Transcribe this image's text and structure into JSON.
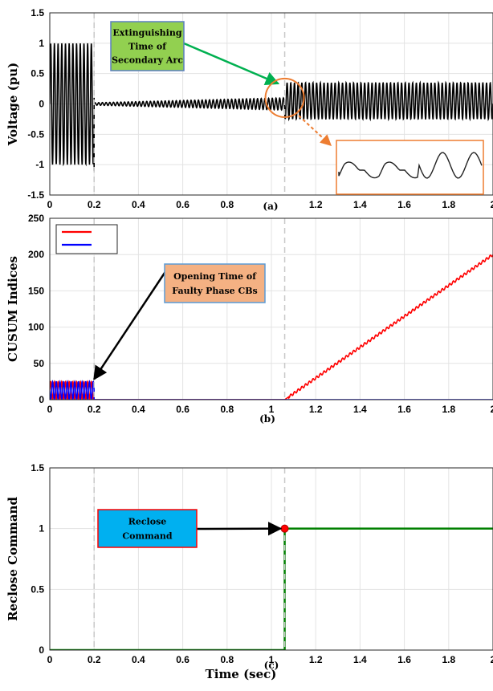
{
  "chart_data": [
    {
      "id": "a",
      "type": "line",
      "panel_label": "(a)",
      "ylabel": "Voltage (pu)",
      "xlim": [
        0,
        2
      ],
      "ylim": [
        -1.5,
        1.5
      ],
      "xticks": [
        0,
        0.2,
        0.4,
        0.6,
        0.8,
        1,
        1.2,
        1.4,
        1.6,
        1.8,
        2
      ],
      "xtick_labels": [
        "0",
        "0.2",
        "0.4",
        "0.6",
        "0.8",
        "",
        "1.2",
        "1.4",
        "1.6",
        "1.8",
        "2"
      ],
      "yticks": [
        -1.5,
        -1,
        -0.5,
        0,
        0.5,
        1,
        1.5
      ],
      "ytick_labels": [
        "-1.5",
        "-1",
        "-0.5",
        "0",
        "0.5",
        "1",
        "1.5"
      ],
      "grid": true,
      "series": [
        {
          "color": "#000000",
          "description": "faulted-phase voltage oscillation",
          "segments": [
            {
              "x_start": 0.0,
              "x_end": 0.2,
              "amplitude": 1.0,
              "offset": 0
            },
            {
              "x_start": 0.2,
              "x_end": 1.06,
              "amplitude_start": 0.02,
              "amplitude_end": 0.1,
              "offset": 0
            },
            {
              "x_start": 1.06,
              "x_end": 2.0,
              "amplitude": 0.3,
              "offset": 0.05
            }
          ]
        }
      ],
      "annotations": [
        {
          "text": [
            "Extinguishing",
            "Time of",
            "Secondary Arc"
          ],
          "fill": "#92d050",
          "border": "#5b7fbf",
          "arrow_color": "#00b050",
          "points_to": [
            1.06,
            0.15
          ]
        },
        {
          "type": "circle",
          "center": [
            1.06,
            0.1
          ],
          "color": "#ed7d31"
        },
        {
          "type": "inset",
          "color": "#ed7d31",
          "from": [
            1.1,
            -0.15
          ],
          "to": [
            1.34,
            -0.65
          ]
        }
      ],
      "reference_lines_x": [
        0.2,
        1.06
      ]
    },
    {
      "id": "b",
      "type": "line",
      "panel_label": "(b)",
      "ylabel": "CUSUM Indices",
      "xlim": [
        0,
        2
      ],
      "ylim": [
        0,
        250
      ],
      "xticks": [
        0,
        0.2,
        0.4,
        0.6,
        0.8,
        1,
        1.2,
        1.4,
        1.6,
        1.8,
        2
      ],
      "xtick_labels": [
        "0",
        "0.2",
        "0.4",
        "0.6",
        "0.8",
        "1",
        "1.2",
        "1.4",
        "1.6",
        "1.8",
        "2"
      ],
      "yticks": [
        0,
        50,
        100,
        150,
        200,
        250
      ],
      "ytick_labels": [
        "0",
        "50",
        "100",
        "150",
        "200",
        "250"
      ],
      "grid": true,
      "legend_placement": "top-left",
      "series": [
        {
          "color": "#ff0000",
          "segments": [
            {
              "x_start": 0.0,
              "x_end": 0.2,
              "oscillation": [
                0,
                25
              ]
            },
            {
              "x_start": 0.2,
              "x_end": 1.06,
              "value": 0
            },
            {
              "x_start": 1.06,
              "x_end": 2.0,
              "ramp": [
                0,
                200
              ]
            }
          ]
        },
        {
          "color": "#0000ff",
          "segments": [
            {
              "x_start": 0.0,
              "x_end": 0.2,
              "oscillation": [
                0,
                25
              ]
            },
            {
              "x_start": 0.2,
              "x_end": 2.0,
              "value": 0
            }
          ]
        }
      ],
      "annotations": [
        {
          "text": [
            "Opening Time of",
            "Faulty Phase CBs"
          ],
          "fill": "#f4b183",
          "border": "#5b9bd5",
          "arrow_color": "#000000",
          "points_to": [
            0.2,
            25
          ]
        }
      ],
      "reference_lines_x": [
        0.2,
        1.06
      ]
    },
    {
      "id": "c",
      "type": "line",
      "panel_label": "(c)",
      "ylabel": "Reclose Command",
      "xlabel": "Time (sec)",
      "xlim": [
        0,
        2
      ],
      "ylim": [
        0,
        1.5
      ],
      "xticks": [
        0,
        0.2,
        0.4,
        0.6,
        0.8,
        1,
        1.2,
        1.4,
        1.6,
        1.8,
        2
      ],
      "xtick_labels": [
        "0",
        "0.2",
        "0.4",
        "0.6",
        "0.8",
        "1",
        "1.2",
        "1.4",
        "1.6",
        "1.8",
        "2"
      ],
      "yticks": [
        0,
        0.5,
        1,
        1.5
      ],
      "ytick_labels": [
        "0",
        "0.5",
        "1",
        "1.5"
      ],
      "grid": true,
      "series": [
        {
          "color": "#008000",
          "x": [
            0,
            1.06,
            1.06,
            2.0
          ],
          "y": [
            0,
            0,
            1,
            1
          ]
        }
      ],
      "markers": [
        {
          "x": 1.06,
          "y": 1,
          "color": "#ff0000"
        }
      ],
      "annotations": [
        {
          "text": [
            "Reclose",
            "Command"
          ],
          "fill": "#00b0f0",
          "border": "#ff0000",
          "arrow_color": "#000000",
          "points_to": [
            1.06,
            1
          ]
        }
      ],
      "reference_lines_x": [
        0.2,
        1.06
      ]
    }
  ]
}
